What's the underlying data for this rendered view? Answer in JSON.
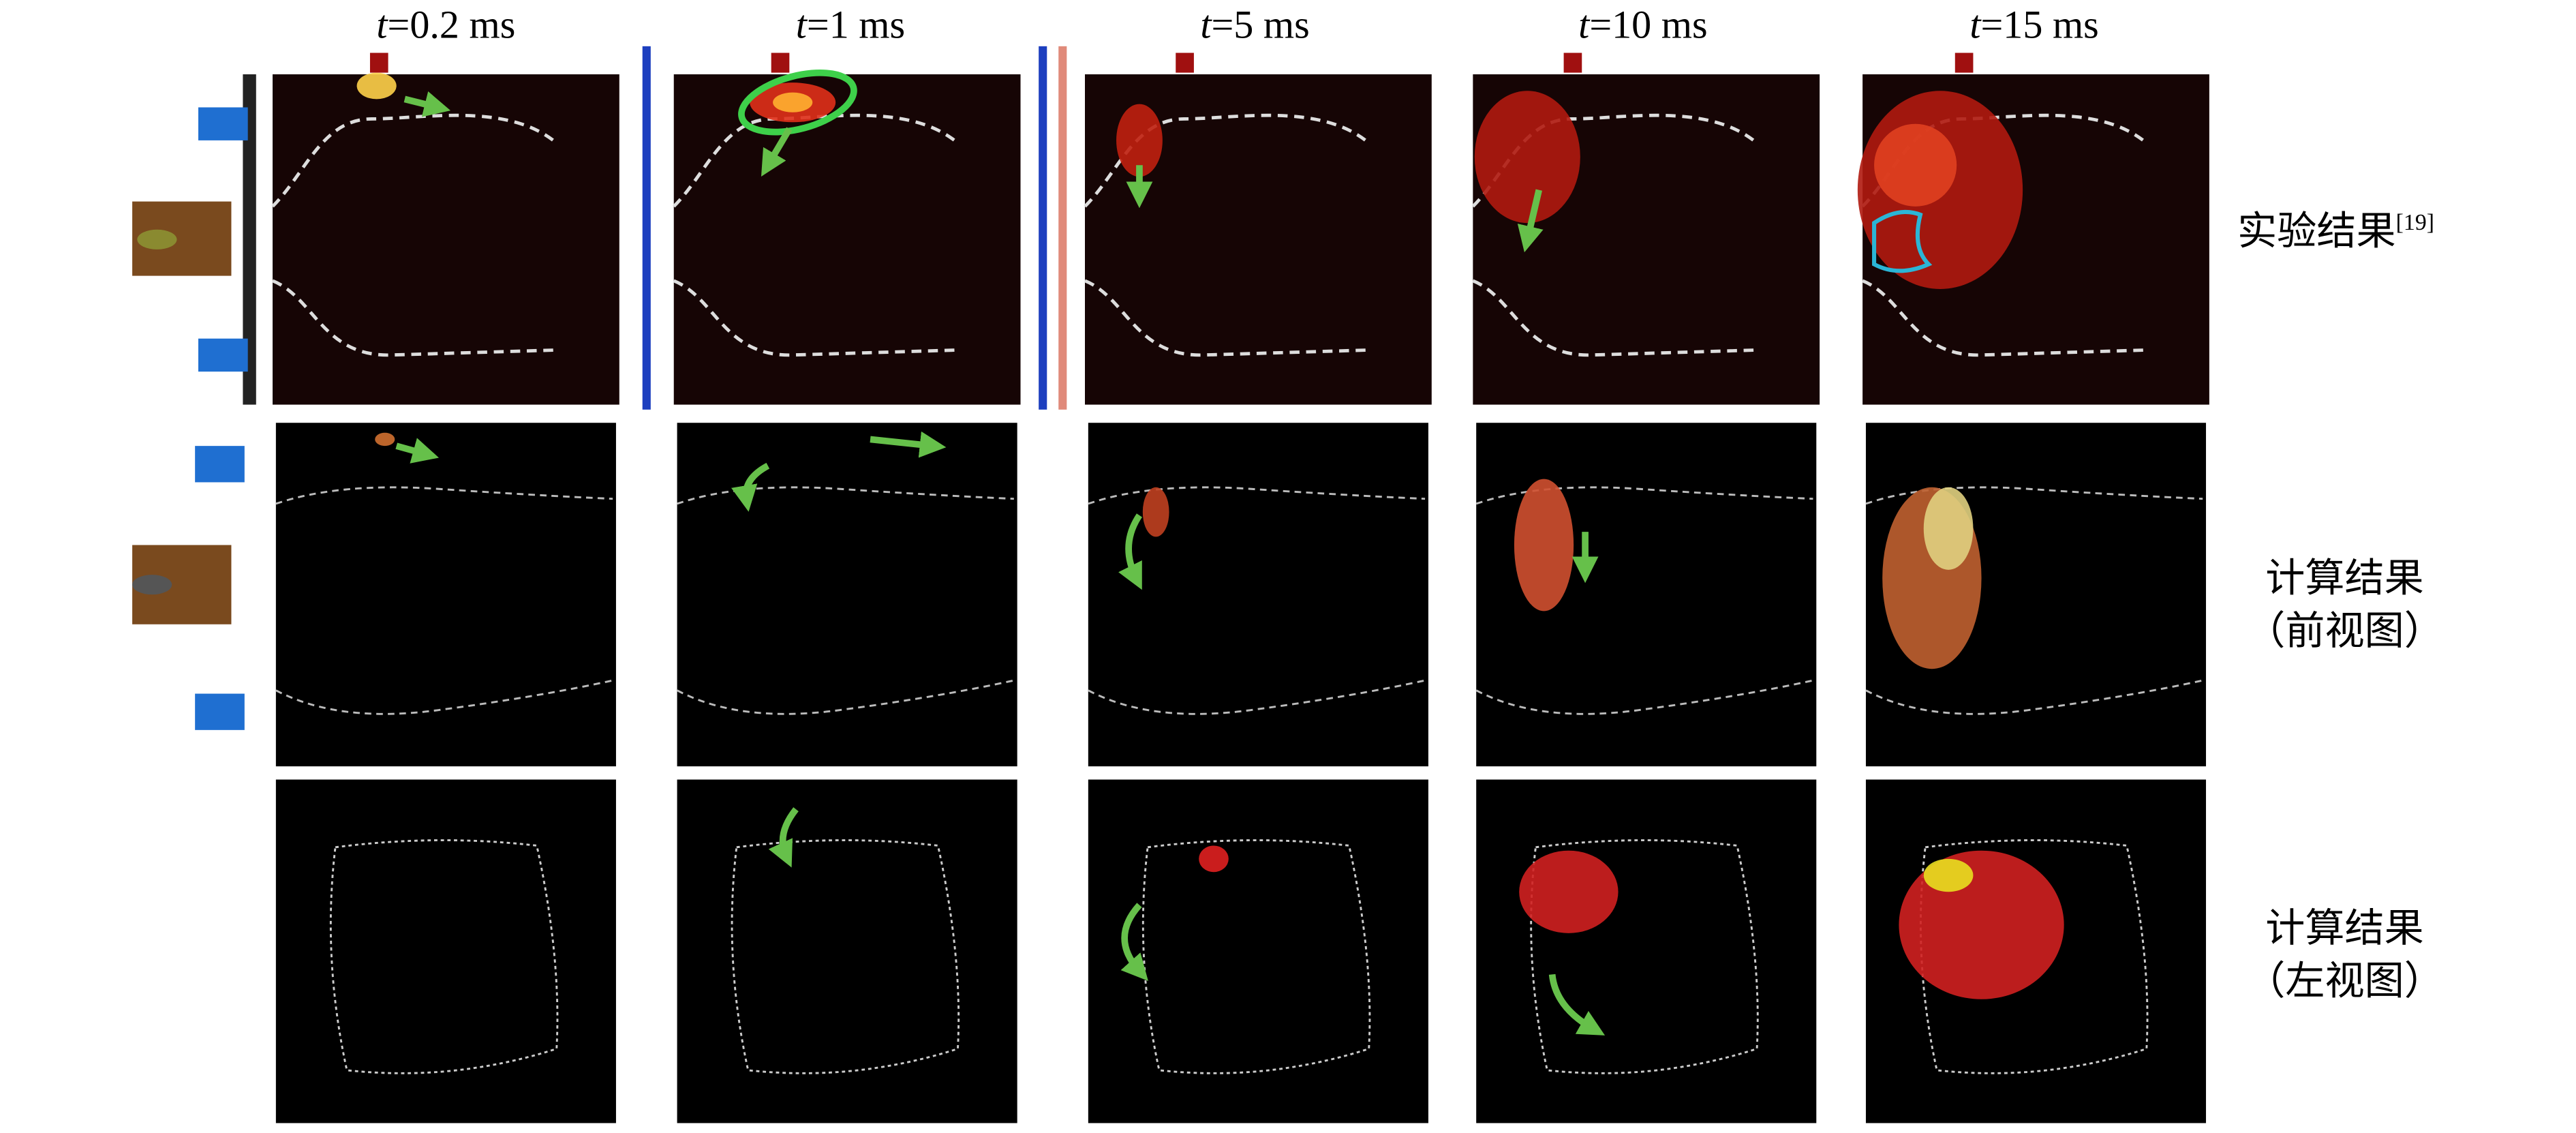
{
  "columns": {
    "variable": "t",
    "values": [
      "=0.2 ms",
      "=1 ms",
      "=5 ms",
      "=10 ms",
      "=15 ms"
    ]
  },
  "rows": [
    {
      "label": "实验结果",
      "ref": "[19]"
    },
    {
      "label": "计算结果",
      "view": "（前视图）"
    },
    {
      "label": "计算结果",
      "view": "（左视图）"
    }
  ]
}
